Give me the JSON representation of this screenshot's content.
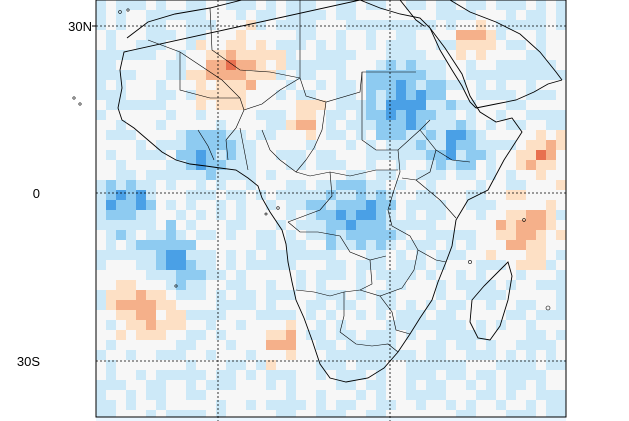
{
  "map": {
    "lat_labels": [
      {
        "text": "30N",
        "lat": 30
      },
      {
        "text": "0",
        "lat": 0
      },
      {
        "text": "30S",
        "lat": -30
      }
    ],
    "gridlines": {
      "parallels": [
        30,
        0,
        -30
      ],
      "meridians_deg_e": [
        0,
        30
      ],
      "style": "dashed"
    },
    "projection_extent": {
      "lon_min": -15,
      "lon_max": 55,
      "lat_min": -40,
      "lat_max": 35
    },
    "colors": {
      "ocean_fill": "#eaf6ff",
      "strong_positive": "#e8704f",
      "moderate_positive": "#f5b08a",
      "weak_positive": "#fde0c5",
      "neutral": "#f7f7f7",
      "weak_negative": "#cde9f8",
      "moderate_negative": "#8ecbf1",
      "strong_negative": "#4aa0e6",
      "boundary": "#000000",
      "gridline": "#000000"
    }
  }
}
